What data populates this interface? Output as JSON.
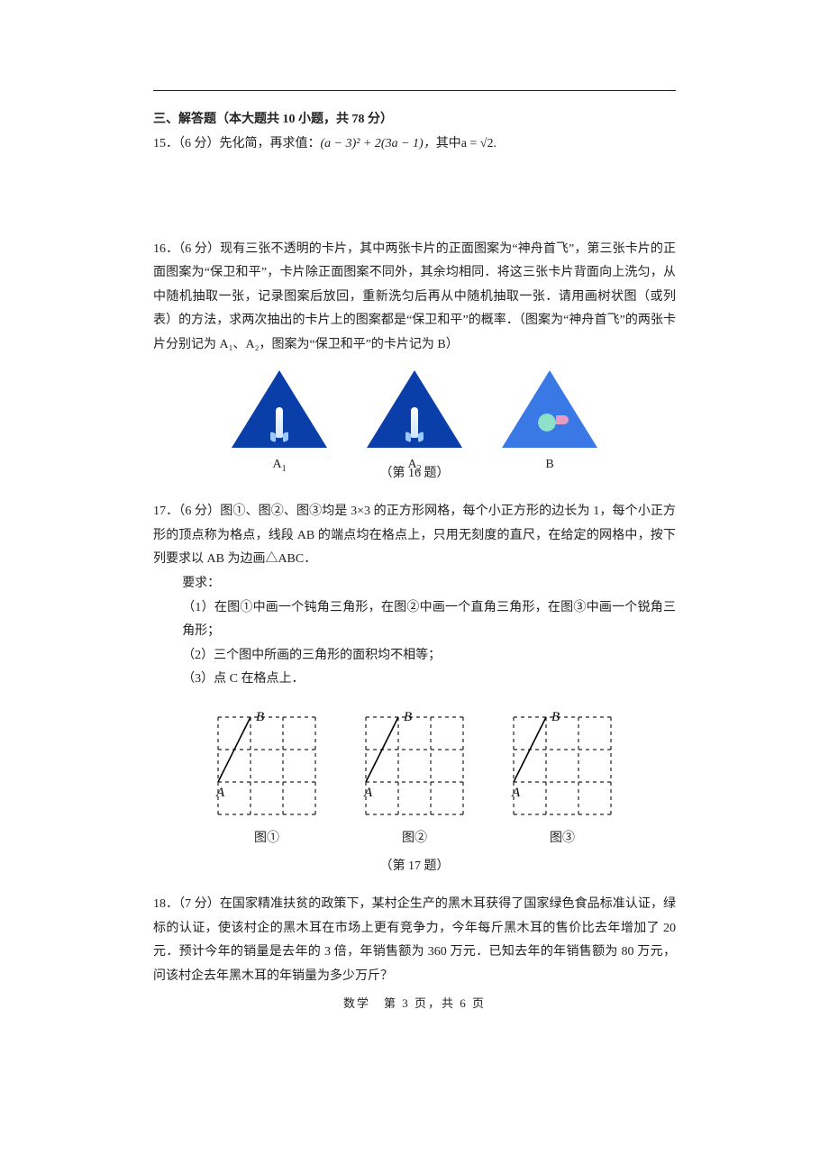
{
  "section_title": "三、解答题（本大题共 10 小题，共 78 分）",
  "q15": {
    "num": "15．",
    "pts": "（6 分）",
    "text_a": "先化简，再求值：",
    "formula": "(a − 3)² + 2(3a − 1)，",
    "text_b": "其中",
    "where": "a = √2."
  },
  "q16": {
    "num": "16．",
    "pts": "（6 分）",
    "body": "现有三张不透明的卡片，其中两张卡片的正面图案为“神舟首飞”，第三张卡片的正面图案为“保卫和平”，卡片除正面图案不同外，其余均相同．将这三张卡片背面向上洗匀，从中随机抽取一张，记录图案后放回，重新洗匀后再从中随机抽取一张．请用画树状图（或列表）的方法，求两次抽出的卡片上的图案都是“保卫和平”的概率．（图案为“神舟首飞”的两张卡片分别记为 A₁、A₂，图案为“保卫和平”的卡片记为 B）",
    "cards": {
      "a1": "A",
      "a1s": "1",
      "a2": "A",
      "a2s": "2",
      "b": "B"
    },
    "caption": "（第 16 题）"
  },
  "q17": {
    "num": "17．",
    "pts": "（6 分）",
    "body": "图①、图②、图③均是 3×3 的正方形网格，每个小正方形的边长为 1，每个小正方形的顶点称为格点，线段 AB 的端点均在格点上，只用无刻度的直尺，在给定的网格中，按下列要求以 AB 为边画△ABC．",
    "req_label": "要求：",
    "req1": "（1）在图①中画一个钝角三角形，在图②中画一个直角三角形，在图③中画一个锐角三角形；",
    "req2": "（2）三个图中所画的三角形的面积均不相等；",
    "req3": "（3）点 C 在格点上．",
    "labels": {
      "a": "A",
      "b": "B",
      "g1": "图①",
      "g2": "图②",
      "g3": "图③"
    },
    "caption": "（第 17 题）",
    "grid_style": {
      "cell": 36,
      "dash_color": "#222",
      "line_color": "#000",
      "dash": "4,4"
    }
  },
  "q18": {
    "num": "18．",
    "pts": "（7 分）",
    "body": "在国家精准扶贫的政策下，某村企生产的黑木耳获得了国家绿色食品标准认证，绿标的认证，使该村企的黑木耳在市场上更有竞争力，今年每斤黑木耳的售价比去年增加了 20 元．预计今年的销量是去年的 3 倍，年销售额为 360 万元．已知去年的年销售额为 80 万元，问该村企去年黑木耳的年销量为多少万斤？"
  },
  "pager": "数学　第 3 页，共 6 页"
}
